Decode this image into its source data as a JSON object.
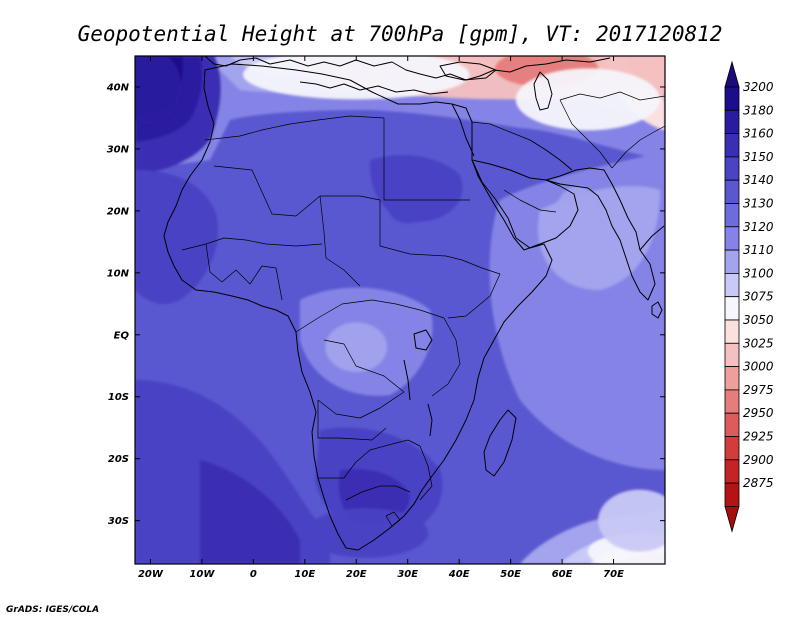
{
  "title": "Geopotential Height at 700hPa [gpm], VT: 2017120812",
  "credit": "GrADS: IGES/COLA",
  "map": {
    "lon_range": [
      -23,
      80
    ],
    "lat_range": [
      -37,
      45
    ],
    "lon_ticks": [
      {
        "value": -20,
        "label": "20W"
      },
      {
        "value": -10,
        "label": "10W"
      },
      {
        "value": 0,
        "label": "0"
      },
      {
        "value": 10,
        "label": "10E"
      },
      {
        "value": 20,
        "label": "20E"
      },
      {
        "value": 30,
        "label": "30E"
      },
      {
        "value": 40,
        "label": "40E"
      },
      {
        "value": 50,
        "label": "50E"
      },
      {
        "value": 60,
        "label": "60E"
      },
      {
        "value": 70,
        "label": "70E"
      }
    ],
    "lat_ticks": [
      {
        "value": 40,
        "label": "40N"
      },
      {
        "value": 30,
        "label": "30N"
      },
      {
        "value": 20,
        "label": "20N"
      },
      {
        "value": 10,
        "label": "10N"
      },
      {
        "value": 0,
        "label": "EQ"
      },
      {
        "value": -10,
        "label": "10S"
      },
      {
        "value": -20,
        "label": "20S"
      },
      {
        "value": -30,
        "label": "30S"
      }
    ]
  },
  "colorbar": {
    "levels": [
      {
        "label": "3200",
        "color": "#1c0d8a"
      },
      {
        "label": "3180",
        "color": "#2a1ca0"
      },
      {
        "label": "3160",
        "color": "#3a2fb4"
      },
      {
        "label": "3150",
        "color": "#4a43c4"
      },
      {
        "label": "3140",
        "color": "#5a58d0"
      },
      {
        "label": "3130",
        "color": "#6d6cdc"
      },
      {
        "label": "3120",
        "color": "#8584e6"
      },
      {
        "label": "3110",
        "color": "#a3a3ee"
      },
      {
        "label": "3100",
        "color": "#c9c9f6"
      },
      {
        "label": "3075",
        "color": "#f6f6fc"
      },
      {
        "label": "3050",
        "color": "#fbe0e0"
      },
      {
        "label": "3025",
        "color": "#f5c0c0"
      },
      {
        "label": "3000",
        "color": "#ef9e9e"
      },
      {
        "label": "2975",
        "color": "#e67c7c"
      },
      {
        "label": "2950",
        "color": "#dd5b5b"
      },
      {
        "label": "2925",
        "color": "#d23c3c"
      },
      {
        "label": "2900",
        "color": "#c52424"
      },
      {
        "label": "2875",
        "color": "#b41414"
      }
    ],
    "top_arrow_color": "#1a0a7c",
    "bottom_arrow_color": "#a80d0d"
  },
  "field_blobs": [
    {
      "lon": 50,
      "lat": 44,
      "value": 3025,
      "rx": 42,
      "ry": 6
    },
    {
      "lon": 57,
      "lat": 43,
      "value": 2975,
      "rx": 10,
      "ry": 3
    },
    {
      "lon": 20,
      "lat": 42,
      "value": 3075,
      "rx": 22,
      "ry": 4
    },
    {
      "lon": 65,
      "lat": 38,
      "value": 3075,
      "rx": 14,
      "ry": 5
    },
    {
      "lon": -20,
      "lat": 40,
      "value": 3180,
      "rx": 6,
      "ry": 6
    },
    {
      "lon": 30,
      "lat": 21,
      "value": 3150,
      "rx": 4,
      "ry": 3
    },
    {
      "lon": 20,
      "lat": -2,
      "value": 3110,
      "rx": 6,
      "ry": 4
    },
    {
      "lon": 63,
      "lat": 17,
      "value": 3110,
      "rx": 5,
      "ry": 7
    },
    {
      "lon": 22,
      "lat": -32,
      "value": 3150,
      "rx": 12,
      "ry": 4
    },
    {
      "lon": 75,
      "lat": -35,
      "value": 3075,
      "rx": 10,
      "ry": 3
    },
    {
      "lon": 75,
      "lat": -30,
      "value": 3100,
      "rx": 8,
      "ry": 5
    }
  ],
  "icons": {
    "top_arrow": "triangle-up-icon",
    "bottom_arrow": "triangle-down-icon"
  }
}
